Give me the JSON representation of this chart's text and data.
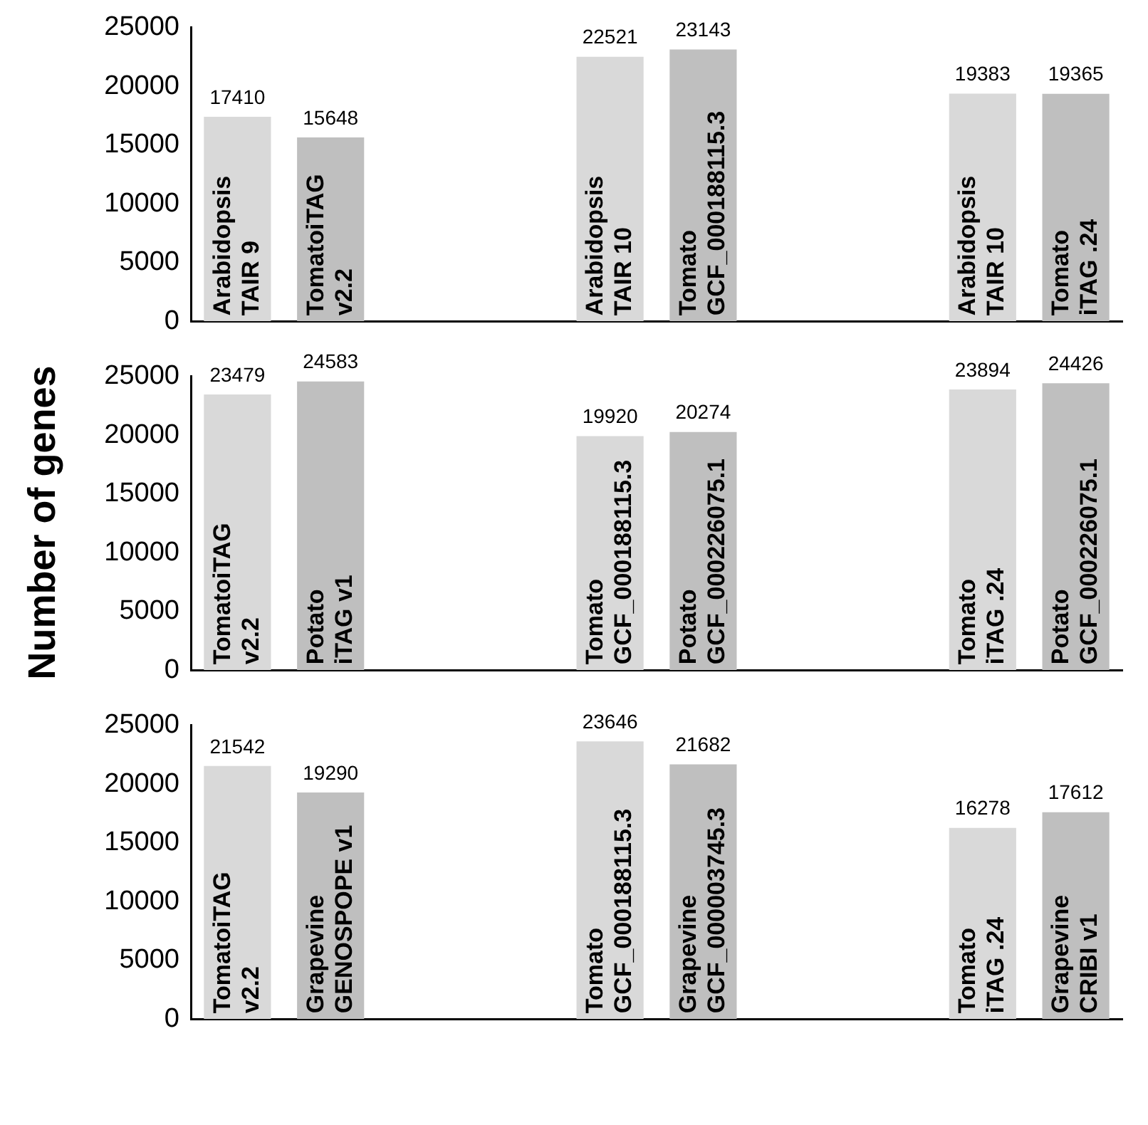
{
  "chart_data": [
    {
      "type": "bar",
      "categories": [
        "Arabidopsis\nTAIR 9",
        "TomatoiTAG\nv2.2",
        null,
        null,
        "Arabidopsis\nTAIR 10",
        "Tomato\nGCF_000188115.3",
        null,
        null,
        "Arabidopsis\nTAIR 10",
        "Tomato\niTAG .24"
      ],
      "values": [
        17410,
        15648,
        null,
        null,
        22521,
        23143,
        null,
        null,
        19383,
        19365
      ],
      "colors": [
        "#d9d9d9",
        "#bfbfbf",
        null,
        null,
        "#d9d9d9",
        "#bfbfbf",
        null,
        null,
        "#d9d9d9",
        "#bfbfbf"
      ],
      "ylim": [
        0,
        25000
      ],
      "yticks": [
        0,
        5000,
        10000,
        15000,
        20000,
        25000
      ],
      "data_labels": true
    },
    {
      "type": "bar",
      "ylabel": "Number of genes",
      "categories": [
        "TomatoiTAG\nv2.2",
        "Potato\niTAG v1",
        null,
        null,
        "Tomato\nGCF_000188115.3",
        "Potato\nGCF_000226075.1",
        null,
        null,
        "Tomato\niTAG .24",
        "Potato\nGCF_000226075.1"
      ],
      "values": [
        23479,
        24583,
        null,
        null,
        19920,
        20274,
        null,
        null,
        23894,
        24426
      ],
      "colors": [
        "#d9d9d9",
        "#bfbfbf",
        null,
        null,
        "#d9d9d9",
        "#bfbfbf",
        null,
        null,
        "#d9d9d9",
        "#bfbfbf"
      ],
      "ylim": [
        0,
        25000
      ],
      "yticks": [
        0,
        5000,
        10000,
        15000,
        20000,
        25000
      ],
      "data_labels": true
    },
    {
      "type": "bar",
      "categories": [
        "TomatoiTAG\nv2.2",
        "Grapevine\nGENOSPOPE v1",
        null,
        null,
        "Tomato\nGCF_000188115.3",
        "Grapevine\nGCF_000003745.3",
        null,
        null,
        "Tomato\niTAG .24",
        "Grapevine\nCRIBI v1"
      ],
      "values": [
        21542,
        19290,
        null,
        null,
        23646,
        21682,
        null,
        null,
        16278,
        17612
      ],
      "colors": [
        "#d9d9d9",
        "#bfbfbf",
        null,
        null,
        "#d9d9d9",
        "#bfbfbf",
        null,
        null,
        "#d9d9d9",
        "#bfbfbf"
      ],
      "ylim": [
        0,
        25000
      ],
      "yticks": [
        0,
        5000,
        10000,
        15000,
        20000,
        25000
      ],
      "data_labels": true
    }
  ]
}
